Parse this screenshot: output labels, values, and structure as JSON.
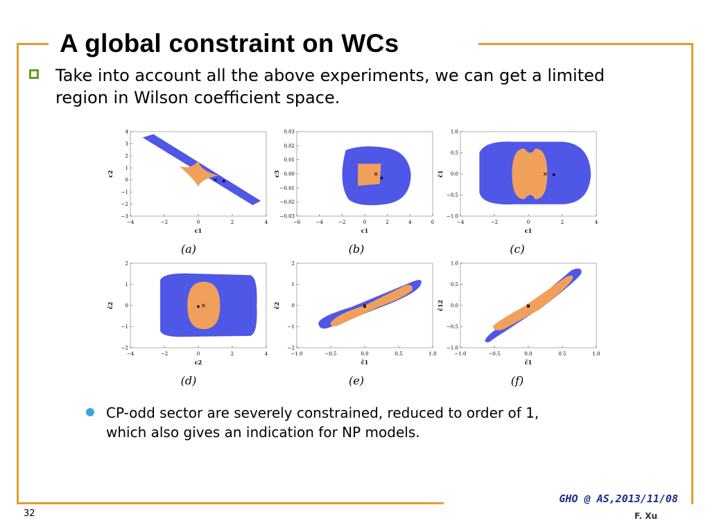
{
  "slide": {
    "title": "A global constraint on WCs",
    "main_bullet_line1": "Take into account all the above experiments, we can get a limited",
    "main_bullet_line2": "region in Wilson coefficient space.",
    "sub_bullet_line1": "CP-odd sector are severely constrained, reduced to order of 1,",
    "sub_bullet_line2": "which also gives an indication for NP models.",
    "footer": "GHO @ AS,2013/11/08",
    "author": "F. Xu",
    "page_number": "32",
    "colors": {
      "frame": "#e39c2b",
      "blue_region": "#4e57e6",
      "orange_region": "#f0a05a",
      "bullet_box": "#6a9a22",
      "dot_bullet": "#3aa7d6",
      "footer": "#1a2a8a"
    }
  },
  "chart_data": [
    {
      "type": "scatter",
      "caption": "(a)",
      "xlabel": "c1",
      "ylabel": "c2",
      "xlim": [
        -4,
        4
      ],
      "ylim": [
        -3,
        4
      ],
      "xticks": [
        "−4",
        "−2",
        "0",
        "2",
        "4"
      ],
      "yticks": [
        "4",
        "3",
        "2",
        "1",
        "0",
        "−1",
        "−2",
        "−3"
      ],
      "point_x": [
        1.0,
        0.0
      ],
      "point_dot": [
        1.5,
        -0.1
      ]
    },
    {
      "type": "scatter",
      "caption": "(b)",
      "xlabel": "c1",
      "ylabel": "c3",
      "xlim": [
        -6,
        6
      ],
      "ylim": [
        -0.03,
        0.03
      ],
      "xticks": [
        "−6",
        "−4",
        "−2",
        "0",
        "2",
        "4",
        "6"
      ],
      "yticks": [
        "0.03",
        "0.02",
        "0.01",
        "0.00",
        "−0.01",
        "−0.02",
        "−0.03"
      ],
      "point_x": [
        1.0,
        0.0
      ],
      "point_dot": [
        1.5,
        -0.003
      ]
    },
    {
      "type": "scatter",
      "caption": "(c)",
      "xlabel": "c1",
      "ylabel": "c̃1",
      "xlim": [
        -4,
        4
      ],
      "ylim": [
        -1.0,
        1.0
      ],
      "xticks": [
        "−4",
        "−2",
        "0",
        "2",
        "4"
      ],
      "yticks": [
        "1.0",
        "0.5",
        "0.0",
        "−0.5",
        "−1.0"
      ],
      "point_x": [
        1.0,
        0.0
      ],
      "point_dot": [
        1.5,
        -0.02
      ]
    },
    {
      "type": "scatter",
      "caption": "(d)",
      "xlabel": "c2",
      "ylabel": "c̃2",
      "xlim": [
        -4,
        4
      ],
      "ylim": [
        -2,
        2
      ],
      "xticks": [
        "−4",
        "−2",
        "0",
        "2",
        "4"
      ],
      "yticks": [
        "2",
        "1",
        "0",
        "−1",
        "−2"
      ],
      "point_x": [
        0.3,
        0.0
      ],
      "point_dot": [
        0.0,
        -0.05
      ]
    },
    {
      "type": "scatter",
      "caption": "(e)",
      "xlabel": "c̃1",
      "ylabel": "c̃2",
      "xlim": [
        -1.0,
        1.0
      ],
      "ylim": [
        -2,
        2
      ],
      "xticks": [
        "−1.0",
        "−0.5",
        "0.0",
        "0.5",
        "1.0"
      ],
      "yticks": [
        "2",
        "1",
        "0",
        "−1",
        "−2"
      ],
      "point_x": [
        0.0,
        0.0
      ],
      "point_dot": [
        0.0,
        -0.05
      ]
    },
    {
      "type": "scatter",
      "caption": "(f)",
      "xlabel": "c̃1",
      "ylabel": "c̃12",
      "xlim": [
        -1.0,
        1.0
      ],
      "ylim": [
        -1.0,
        1.0
      ],
      "xticks": [
        "−1.0",
        "−0.5",
        "0.0",
        "0.5",
        "1.0"
      ],
      "yticks": [
        "1.0",
        "0.5",
        "0.0",
        "−0.5",
        "−1.0"
      ],
      "point_x": [
        0.0,
        0.0
      ],
      "point_dot": [
        0.0,
        -0.02
      ]
    }
  ]
}
